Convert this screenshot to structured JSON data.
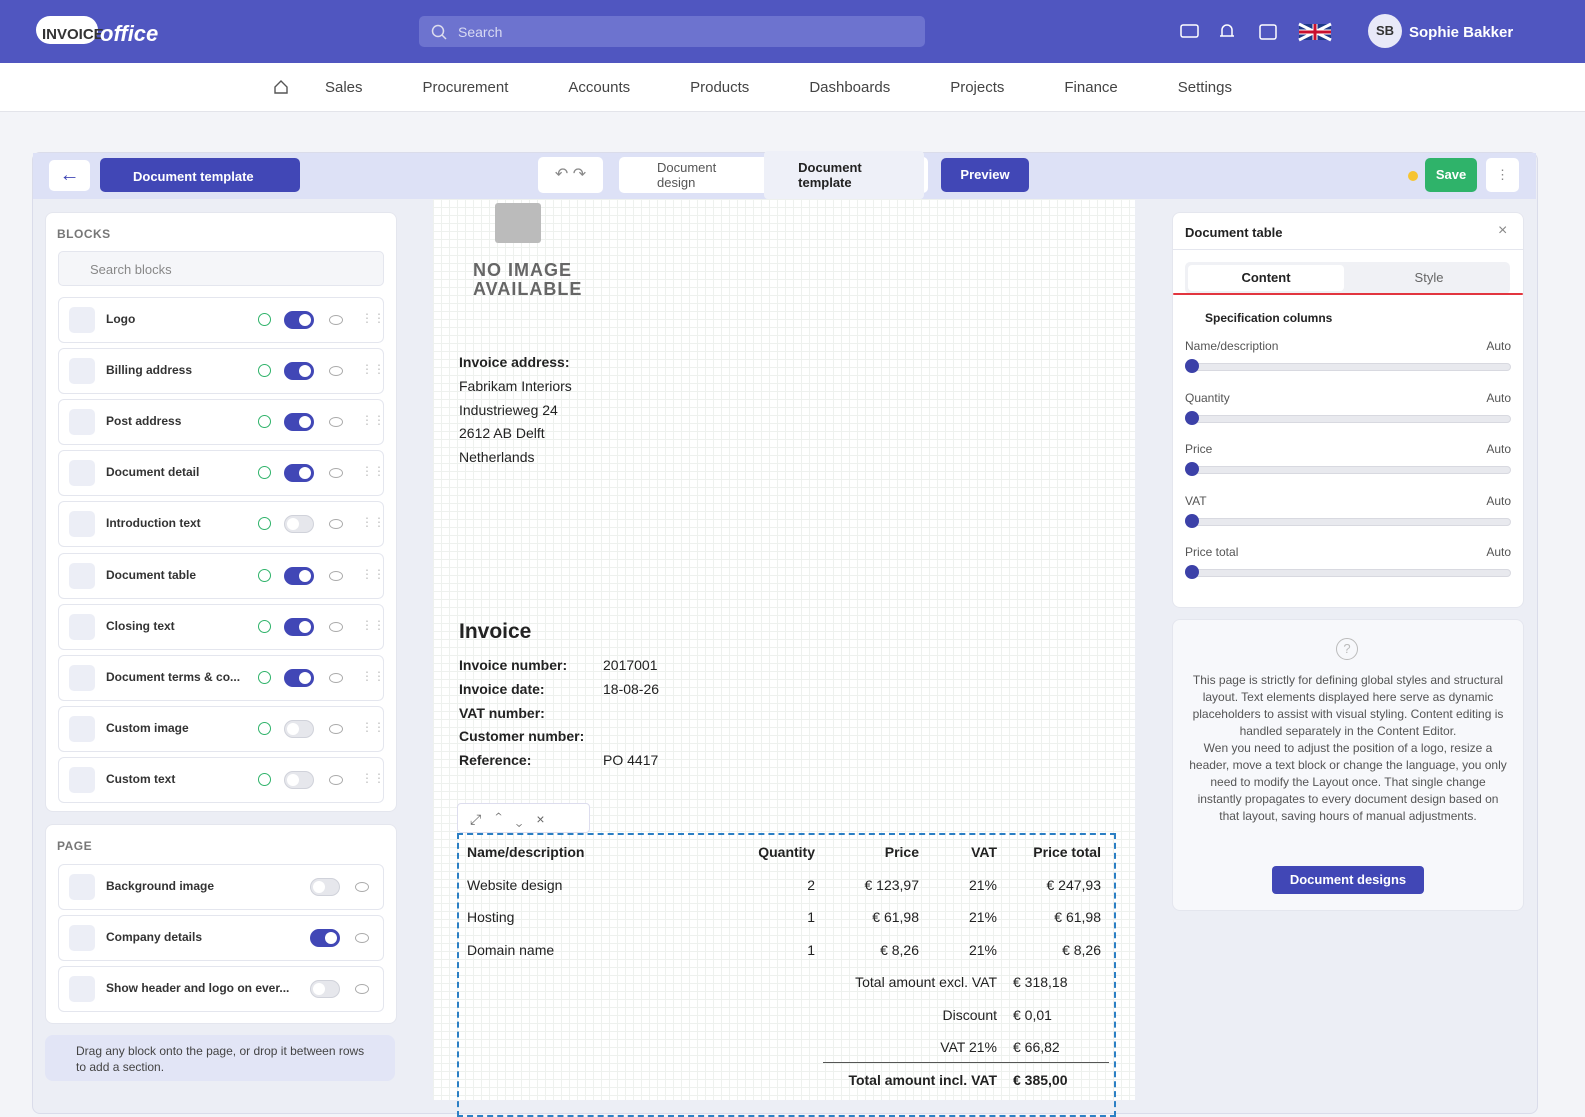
{
  "header": {
    "logo_left": "INVOICE",
    "logo_right": "office",
    "search": "Search",
    "user_initials": "SB",
    "user_name": "Sophie Bakker"
  },
  "nav": [
    "Sales",
    "Procurement",
    "Accounts",
    "Products",
    "Dashboards",
    "Projects",
    "Finance",
    "Settings"
  ],
  "toolbar": {
    "template": "Document template",
    "tabs": [
      "Document design",
      "Document template"
    ],
    "preview": "Preview",
    "save": "Save"
  },
  "blocks": {
    "title": "BLOCKS",
    "search": "Search blocks",
    "items": [
      {
        "label": "Logo",
        "on": true
      },
      {
        "label": "Billing address",
        "on": true
      },
      {
        "label": "Post address",
        "on": true
      },
      {
        "label": "Document detail",
        "on": true
      },
      {
        "label": "Introduction text",
        "on": false
      },
      {
        "label": "Document table",
        "on": true
      },
      {
        "label": "Closing text",
        "on": true
      },
      {
        "label": "Document terms & co...",
        "on": true
      },
      {
        "label": "Custom image",
        "on": false
      },
      {
        "label": "Custom text",
        "on": false
      }
    ]
  },
  "page": {
    "title": "PAGE",
    "items": [
      {
        "label": "Background image",
        "on": false
      },
      {
        "label": "Company details",
        "on": true
      },
      {
        "label": "Show header and logo on ever...",
        "on": false
      }
    ]
  },
  "hint": "Drag any block onto the page, or drop it between rows to add a section.",
  "document": {
    "no_image": [
      "NO IMAGE",
      "AVAILABLE"
    ],
    "address_label": "Invoice address:",
    "address": [
      "Fabrikam Interiors",
      "Industrieweg 24",
      "2612 AB Delft",
      "Netherlands"
    ],
    "title": "Invoice",
    "details": [
      {
        "label": "Invoice number:",
        "value": "2017001"
      },
      {
        "label": "Invoice date:",
        "value": "18-08-26"
      },
      {
        "label": "VAT number:"
      },
      {
        "label": "Customer number:"
      },
      {
        "label": "Reference:",
        "value": "PO 4417"
      }
    ],
    "table": {
      "headers": [
        "Name/description",
        "Quantity",
        "Price",
        "VAT",
        "Price total"
      ],
      "rows": [
        [
          "Website design",
          "2",
          "€ 123,97",
          "21%",
          "€ 247,93"
        ],
        [
          "Hosting",
          "1",
          "€ 61,98",
          "21%",
          "€ 61,98"
        ],
        [
          "Domain name",
          "1",
          "€ 8,26",
          "21%",
          "€ 8,26"
        ]
      ],
      "totals": [
        {
          "label": "Total amount excl. VAT",
          "value": "€ 318,18"
        },
        {
          "label": "Discount",
          "value": "€ 0,01"
        },
        {
          "label": "VAT 21%",
          "value": "€ 66,82"
        },
        {
          "label": "Total amount incl. VAT",
          "value": "€ 385,00"
        }
      ]
    }
  },
  "panel": {
    "title": "Document table",
    "tabs": [
      "Content",
      "Style"
    ],
    "section": "Specification columns",
    "columns": [
      {
        "name": "Name/description",
        "value": "Auto"
      },
      {
        "name": "Quantity",
        "value": "Auto"
      },
      {
        "name": "Price",
        "value": "Auto"
      },
      {
        "name": "VAT",
        "value": "Auto"
      },
      {
        "name": "Price total",
        "value": "Auto"
      }
    ],
    "help": [
      "This page is strictly for defining global styles and structural layout. Text elements displayed here serve as dynamic placeholders to assist with visual styling. Content editing is handled separately in the Content Editor.",
      "Wen you need to adjust the position of a logo, resize a header, move a text block or change the language, you only need to modify the Layout once. That single change instantly propagates to every document design based on that layout, saving hours of manual adjustments."
    ],
    "button": "Document designs"
  }
}
